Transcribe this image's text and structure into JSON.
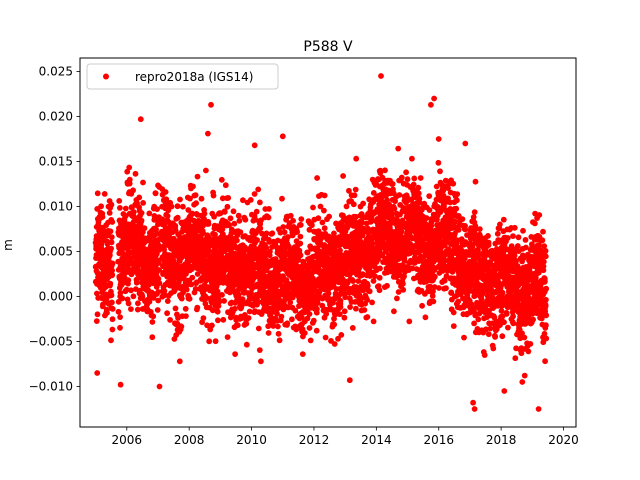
{
  "chart_data": {
    "type": "scatter",
    "title": "P588 V",
    "xlabel": "",
    "ylabel": "m",
    "xlim": [
      2004.5,
      2020.4
    ],
    "ylim": [
      -0.0145,
      0.0265
    ],
    "x_ticks": [
      2006,
      2008,
      2010,
      2012,
      2014,
      2016,
      2018,
      2020
    ],
    "x_tick_labels": [
      "2006",
      "2008",
      "2010",
      "2012",
      "2014",
      "2016",
      "2018",
      "2020"
    ],
    "y_ticks": [
      -0.01,
      -0.005,
      0.0,
      0.005,
      0.01,
      0.015,
      0.02,
      0.025
    ],
    "y_tick_labels": [
      "−0.010",
      "−0.005",
      "0.000",
      "0.005",
      "0.010",
      "0.015",
      "0.020",
      "0.025"
    ],
    "grid": false,
    "legend_position": "top-left",
    "series": [
      {
        "name": "repro2018a (IGS14)",
        "color": "#ff0000",
        "marker": "circle",
        "x_range": [
          2005.0,
          2019.45
        ],
        "trend_knots": [
          [
            2005.0,
            0.003
          ],
          [
            2006.0,
            0.005
          ],
          [
            2007.0,
            0.0045
          ],
          [
            2008.0,
            0.005
          ],
          [
            2009.0,
            0.004
          ],
          [
            2010.0,
            0.003
          ],
          [
            2011.0,
            0.002
          ],
          [
            2012.0,
            0.0025
          ],
          [
            2013.0,
            0.004
          ],
          [
            2014.0,
            0.0065
          ],
          [
            2014.5,
            0.008
          ],
          [
            2015.0,
            0.0065
          ],
          [
            2016.0,
            0.006
          ],
          [
            2016.7,
            0.005
          ],
          [
            2017.0,
            0.002
          ],
          [
            2018.0,
            0.0015
          ],
          [
            2019.0,
            0.001
          ],
          [
            2019.45,
            0.0005
          ]
        ],
        "scatter_std": 0.003,
        "notable_points": [
          [
            2014.15,
            0.0245
          ],
          [
            2015.85,
            0.022
          ],
          [
            2015.75,
            0.0213
          ],
          [
            2008.7,
            0.0213
          ],
          [
            2006.45,
            0.0197
          ],
          [
            2016.0,
            0.0175
          ],
          [
            2010.1,
            0.0168
          ],
          [
            2011.0,
            0.0178
          ],
          [
            2016.85,
            0.017
          ],
          [
            2008.6,
            0.0181
          ],
          [
            2005.8,
            -0.0098
          ],
          [
            2007.05,
            -0.01
          ],
          [
            2017.15,
            -0.0125
          ],
          [
            2017.1,
            -0.0118
          ],
          [
            2019.2,
            -0.0125
          ],
          [
            2018.1,
            -0.0105
          ],
          [
            2013.15,
            -0.0093
          ],
          [
            2005.05,
            -0.0085
          ],
          [
            2007.7,
            -0.0072
          ],
          [
            2010.3,
            -0.0072
          ]
        ]
      }
    ]
  }
}
